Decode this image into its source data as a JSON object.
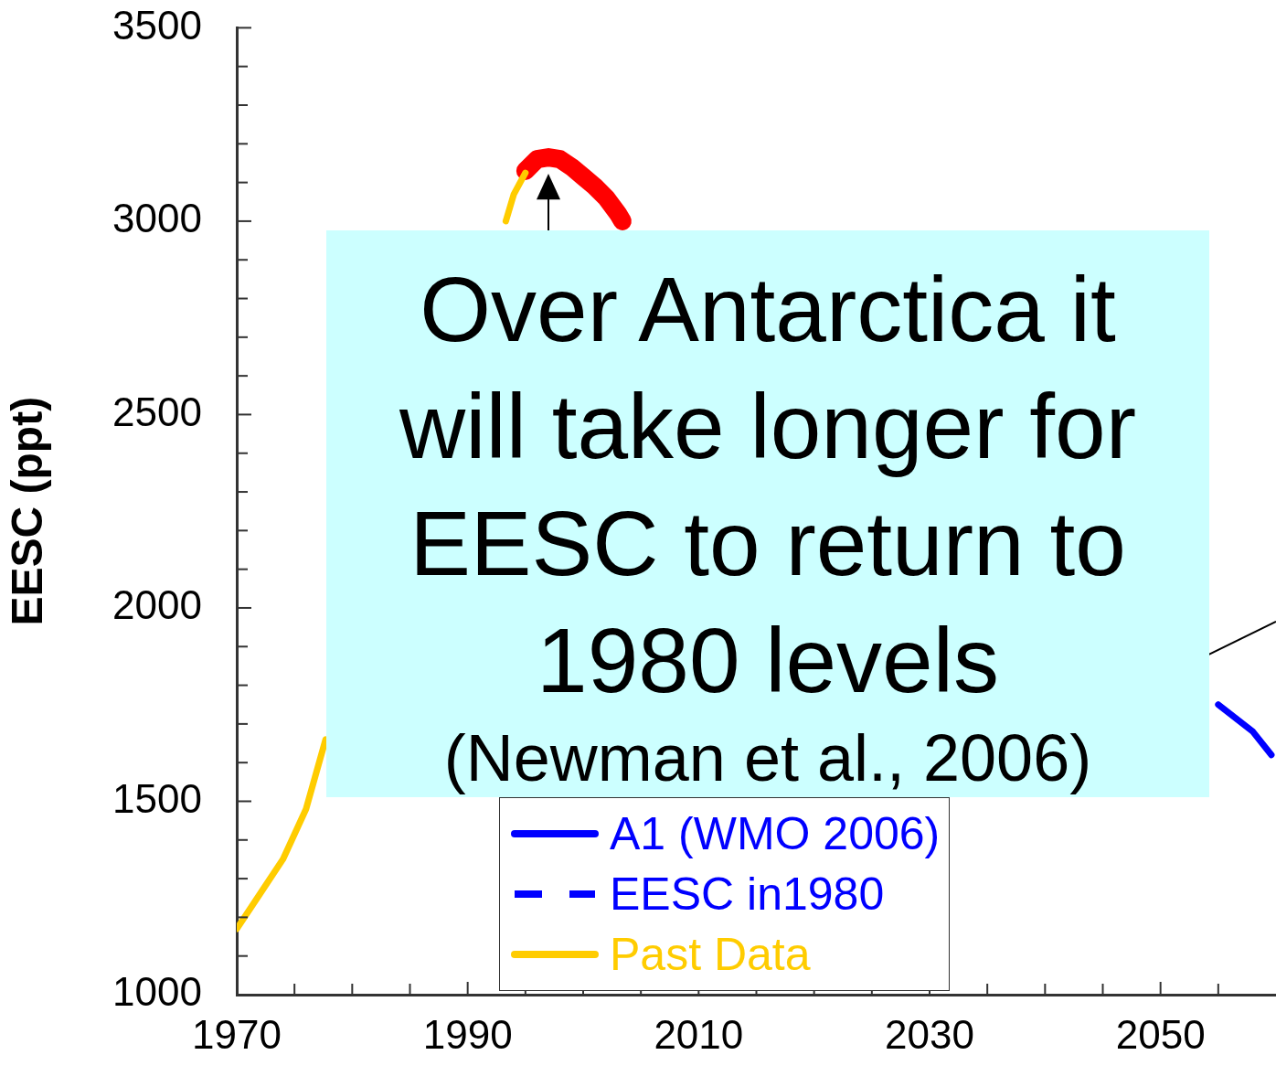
{
  "chart_data": {
    "type": "line",
    "ylabel": "EESC (ppt)",
    "xlim": [
      1970,
      2060
    ],
    "xticks": [
      1970,
      {
        "value": 1975,
        "label": null
      },
      {
        "value": 1980,
        "label": null
      },
      {
        "value": 1985,
        "label": null
      },
      1990,
      {
        "value": 1995,
        "label": null
      },
      {
        "value": 2000,
        "label": null
      },
      {
        "value": 2005,
        "label": null
      },
      2010,
      {
        "value": 2015,
        "label": null
      },
      {
        "value": 2020,
        "label": null
      },
      {
        "value": 2025,
        "label": null
      },
      2030,
      {
        "value": 2035,
        "label": null
      },
      {
        "value": 2040,
        "label": null
      },
      {
        "value": 2045,
        "label": null
      },
      2050,
      {
        "value": 2055,
        "label": null
      }
    ],
    "ylim": [
      1000,
      3500
    ],
    "yticks": [
      1000,
      {
        "value": 1100,
        "label": null
      },
      {
        "value": 1200,
        "label": null
      },
      {
        "value": 1300,
        "label": null
      },
      {
        "value": 1400,
        "label": null
      },
      1500,
      {
        "value": 1600,
        "label": null
      },
      {
        "value": 1700,
        "label": null
      },
      {
        "value": 1800,
        "label": null
      },
      {
        "value": 1900,
        "label": null
      },
      2000,
      {
        "value": 2100,
        "label": null
      },
      {
        "value": 2200,
        "label": null
      },
      {
        "value": 2300,
        "label": null
      },
      {
        "value": 2400,
        "label": null
      },
      2500,
      {
        "value": 2600,
        "label": null
      },
      {
        "value": 2700,
        "label": null
      },
      {
        "value": 2800,
        "label": null
      },
      {
        "value": 2900,
        "label": null
      },
      3000,
      {
        "value": 3100,
        "label": null
      },
      {
        "value": 3200,
        "label": null
      },
      {
        "value": 3300,
        "label": null
      },
      {
        "value": 3400,
        "label": null
      },
      3500
    ],
    "grid": false,
    "legend": "bottom",
    "annotations": [
      "Over Antarctica it will take longer for EESC to return to 1980 levels",
      "(Newman et al., 2006)"
    ],
    "series": [
      {
        "name": "A1 (WMO 2006)",
        "color": "#0000ff",
        "marker": "none",
        "line_style": "solid",
        "x": [
          2055,
          2058,
          2059.6
        ],
        "values": [
          1750,
          1680,
          1620
        ]
      },
      {
        "name": "EESC in1980",
        "color": "#0000ff",
        "marker": "none",
        "line_style": "dashed"
      },
      {
        "name": "Past Data",
        "color": "#ffcc00",
        "marker": "none",
        "line_style": "solid",
        "x": [
          1970,
          1972,
          1974,
          1976,
          1977.7,
          1985,
          1993.3,
          1994,
          1995
        ],
        "values": [
          1170,
          1260,
          1350,
          1480,
          1660,
          null,
          3000,
          3070,
          3125
        ]
      },
      {
        "color": "#ff0000",
        "marker": "none",
        "line_style": "solid",
        "x": [
          1995,
          1996,
          1997,
          1998,
          1999,
          2000,
          2001,
          2002,
          2003,
          2003.4
        ],
        "values": [
          3130,
          3160,
          3165,
          3160,
          3140,
          3115,
          3090,
          3060,
          3020,
          3000
        ]
      }
    ]
  }
}
